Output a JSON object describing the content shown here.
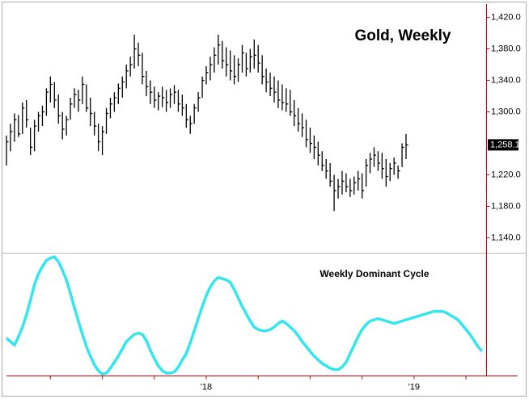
{
  "chart_data": [
    {
      "type": "ohlc",
      "title": "Gold, Weekly",
      "color": "#000000",
      "axis_color": "#cc0000",
      "ylim": [
        1121,
        1437
      ],
      "yticks": [
        {
          "value": 1420,
          "label": "1,420.0"
        },
        {
          "value": 1380,
          "label": "1,380.0"
        },
        {
          "value": 1340,
          "label": "1,340.0"
        },
        {
          "value": 1300,
          "label": "1,300.0"
        },
        {
          "value": 1220,
          "label": "1,220.0"
        },
        {
          "value": 1180,
          "label": "1,180.0"
        },
        {
          "value": 1140,
          "label": "1,140.0"
        }
      ],
      "last_price": {
        "value": 1258.1,
        "label": "1,258.1"
      },
      "high": [
        1270,
        1285,
        1298,
        1296,
        1312,
        1315,
        1280,
        1290,
        1300,
        1308,
        1330,
        1345,
        1338,
        1322,
        1300,
        1295,
        1318,
        1330,
        1328,
        1345,
        1335,
        1318,
        1300,
        1285,
        1282,
        1305,
        1318,
        1325,
        1336,
        1345,
        1360,
        1370,
        1398,
        1388,
        1375,
        1352,
        1340,
        1332,
        1325,
        1332,
        1328,
        1330,
        1334,
        1328,
        1322,
        1310,
        1295,
        1310,
        1325,
        1345,
        1358,
        1370,
        1382,
        1398,
        1390,
        1382,
        1378,
        1372,
        1368,
        1385,
        1375,
        1380,
        1392,
        1385,
        1372,
        1355,
        1350,
        1345,
        1340,
        1335,
        1330,
        1328,
        1315,
        1305,
        1298,
        1290,
        1280,
        1270,
        1262,
        1250,
        1240,
        1235,
        1220,
        1215,
        1225,
        1222,
        1215,
        1218,
        1225,
        1222,
        1240,
        1248,
        1255,
        1250,
        1248,
        1240,
        1235,
        1242,
        1232,
        1260,
        1272
      ],
      "low": [
        1232,
        1250,
        1262,
        1268,
        1272,
        1280,
        1245,
        1250,
        1275,
        1282,
        1295,
        1312,
        1305,
        1285,
        1265,
        1270,
        1290,
        1305,
        1300,
        1310,
        1300,
        1282,
        1270,
        1250,
        1245,
        1272,
        1292,
        1300,
        1310,
        1318,
        1330,
        1345,
        1355,
        1358,
        1335,
        1320,
        1310,
        1305,
        1302,
        1306,
        1300,
        1305,
        1310,
        1300,
        1295,
        1280,
        1272,
        1285,
        1300,
        1318,
        1335,
        1340,
        1350,
        1360,
        1355,
        1345,
        1340,
        1335,
        1338,
        1350,
        1345,
        1350,
        1355,
        1350,
        1335,
        1325,
        1320,
        1312,
        1305,
        1302,
        1300,
        1295,
        1282,
        1275,
        1268,
        1255,
        1248,
        1240,
        1232,
        1225,
        1215,
        1205,
        1174,
        1190,
        1195,
        1198,
        1192,
        1195,
        1200,
        1190,
        1205,
        1222,
        1230,
        1225,
        1215,
        1205,
        1212,
        1220,
        1215,
        1230,
        1240
      ],
      "close": [
        1262,
        1275,
        1290,
        1272,
        1305,
        1290,
        1255,
        1282,
        1295,
        1300,
        1325,
        1335,
        1315,
        1295,
        1278,
        1290,
        1310,
        1322,
        1315,
        1335,
        1305,
        1298,
        1282,
        1262,
        1275,
        1298,
        1310,
        1318,
        1330,
        1338,
        1352,
        1360,
        1380,
        1372,
        1345,
        1332,
        1325,
        1315,
        1320,
        1318,
        1312,
        1322,
        1325,
        1310,
        1305,
        1290,
        1285,
        1305,
        1318,
        1340,
        1350,
        1360,
        1372,
        1385,
        1365,
        1360,
        1352,
        1345,
        1360,
        1375,
        1355,
        1370,
        1372,
        1362,
        1345,
        1338,
        1330,
        1325,
        1315,
        1312,
        1310,
        1300,
        1295,
        1285,
        1280,
        1265,
        1260,
        1255,
        1245,
        1232,
        1225,
        1212,
        1200,
        1205,
        1212,
        1205,
        1200,
        1210,
        1215,
        1200,
        1232,
        1240,
        1245,
        1235,
        1228,
        1218,
        1228,
        1235,
        1225,
        1255,
        1258.1
      ]
    },
    {
      "type": "line",
      "title": "Weekly Dominant Cycle",
      "color": "#33e6ee",
      "ylim": [
        0,
        100
      ],
      "categories": [
        null,
        null,
        null,
        null,
        null,
        null,
        null,
        null,
        null,
        null,
        null,
        null,
        null,
        null,
        null,
        null,
        null,
        null,
        null,
        null,
        null,
        null,
        null,
        null,
        null,
        null,
        null,
        null,
        null,
        null,
        null,
        null,
        null,
        null,
        null,
        null,
        null,
        null,
        null,
        null,
        null,
        null,
        null,
        null,
        null,
        null,
        null,
        null,
        null,
        null,
        "'18",
        null,
        null,
        null,
        null,
        null,
        null,
        null,
        null,
        null,
        null,
        null,
        null,
        null,
        null,
        null,
        null,
        null,
        null,
        null,
        null,
        null,
        null,
        null,
        null,
        null,
        null,
        null,
        null,
        null,
        null,
        null,
        null,
        null,
        null,
        null,
        null,
        null,
        null,
        null,
        null,
        null,
        null,
        null,
        null,
        null,
        null,
        null,
        null,
        null,
        null,
        null,
        "'19",
        null,
        null,
        null,
        null,
        null,
        null,
        null,
        null,
        null,
        null,
        null,
        null,
        null,
        null,
        null,
        null,
        null
      ],
      "values": [
        31,
        28,
        25,
        32,
        40,
        50,
        62,
        75,
        84,
        90,
        95,
        97,
        98,
        94,
        87,
        79,
        68,
        56,
        45,
        34,
        24,
        16,
        9,
        4,
        1,
        2,
        6,
        11,
        16,
        22,
        28,
        31,
        34,
        35,
        34,
        29,
        21,
        14,
        8,
        4,
        2,
        2,
        3,
        7,
        13,
        18,
        27,
        37,
        47,
        57,
        66,
        73,
        78,
        81,
        80,
        79,
        77,
        71,
        64,
        57,
        51,
        45,
        40,
        38,
        37,
        37,
        38,
        40,
        43,
        45,
        43,
        40,
        37,
        33,
        28,
        24,
        20,
        16,
        13,
        10,
        8,
        6,
        5,
        5,
        7,
        11,
        18,
        25,
        32,
        38,
        42,
        45,
        46,
        47,
        46,
        45,
        44,
        43,
        44,
        45,
        46,
        47,
        48,
        49,
        50,
        51,
        52,
        53,
        53,
        53,
        52,
        50,
        48,
        46,
        42,
        38,
        34,
        29,
        24,
        20
      ]
    }
  ]
}
